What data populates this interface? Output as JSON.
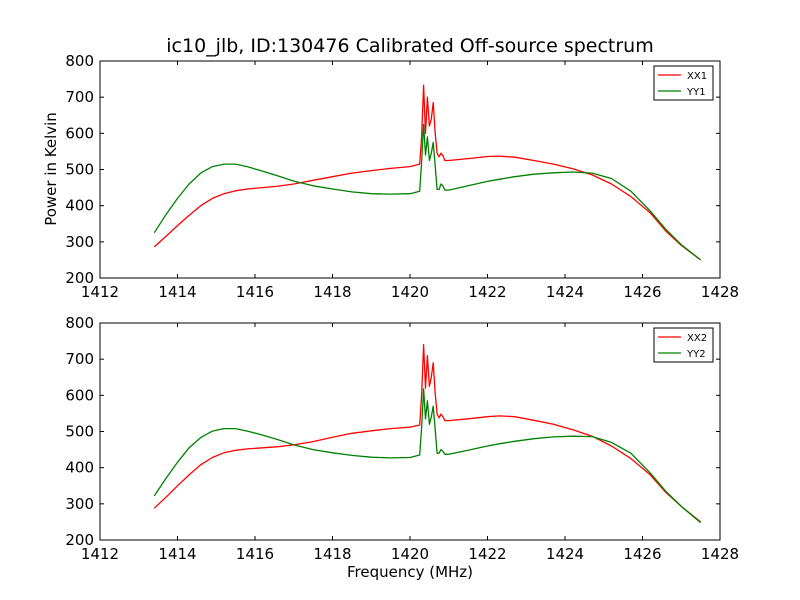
{
  "figure": {
    "title": "ic10_jlb, ID:130476 Calibrated Off-source spectrum",
    "ylabel": "Power in Kelvin",
    "xlabel": "Frequency (MHz)"
  },
  "colors": {
    "xx": "#ff0000",
    "yy": "#008000"
  },
  "chart_data": [
    {
      "type": "line",
      "xlim": [
        1412,
        1428
      ],
      "ylim": [
        200,
        800
      ],
      "xticks": [
        1412,
        1414,
        1416,
        1418,
        1420,
        1422,
        1424,
        1426,
        1428
      ],
      "yticks": [
        200,
        300,
        400,
        500,
        600,
        700,
        800
      ],
      "legend_position": "top-right",
      "grid": false,
      "series": [
        {
          "name": "XX1",
          "color": "#ff0000",
          "x": [
            1413.4,
            1413.7,
            1414.0,
            1414.3,
            1414.6,
            1414.9,
            1415.2,
            1415.5,
            1415.8,
            1416.2,
            1416.6,
            1417.0,
            1417.5,
            1418.0,
            1418.5,
            1419.0,
            1419.5,
            1420.0,
            1420.25,
            1420.3,
            1420.35,
            1420.4,
            1420.45,
            1420.5,
            1420.55,
            1420.6,
            1420.65,
            1420.7,
            1420.75,
            1420.8,
            1420.85,
            1420.9,
            1421.0,
            1421.5,
            1422.0,
            1422.3,
            1422.7,
            1423.2,
            1423.7,
            1424.2,
            1424.7,
            1425.2,
            1425.7,
            1426.2,
            1426.6,
            1427.0,
            1427.5
          ],
          "y": [
            286,
            315,
            345,
            373,
            400,
            420,
            433,
            441,
            446,
            450,
            454,
            460,
            470,
            480,
            490,
            497,
            503,
            508,
            515,
            590,
            733,
            600,
            700,
            620,
            640,
            685,
            600,
            545,
            535,
            545,
            538,
            525,
            525,
            530,
            536,
            537,
            534,
            525,
            515,
            502,
            485,
            460,
            425,
            380,
            330,
            290,
            250
          ]
        },
        {
          "name": "YY1",
          "color": "#008000",
          "x": [
            1413.4,
            1413.7,
            1414.0,
            1414.3,
            1414.6,
            1414.9,
            1415.2,
            1415.5,
            1415.8,
            1416.2,
            1416.6,
            1417.0,
            1417.5,
            1418.0,
            1418.5,
            1419.0,
            1419.5,
            1420.0,
            1420.25,
            1420.3,
            1420.35,
            1420.4,
            1420.45,
            1420.5,
            1420.55,
            1420.6,
            1420.65,
            1420.7,
            1420.75,
            1420.8,
            1420.85,
            1420.9,
            1421.0,
            1421.5,
            1422.0,
            1422.3,
            1422.7,
            1423.2,
            1423.7,
            1424.2,
            1424.7,
            1425.2,
            1425.7,
            1426.2,
            1426.6,
            1427.0,
            1427.5
          ],
          "y": [
            325,
            375,
            420,
            460,
            490,
            508,
            515,
            515,
            508,
            495,
            482,
            468,
            455,
            446,
            438,
            433,
            432,
            433,
            440,
            520,
            625,
            540,
            590,
            525,
            545,
            575,
            510,
            445,
            445,
            460,
            455,
            443,
            443,
            455,
            467,
            473,
            480,
            487,
            491,
            493,
            490,
            475,
            440,
            385,
            335,
            292,
            250
          ]
        }
      ]
    },
    {
      "type": "line",
      "xlim": [
        1412,
        1428
      ],
      "ylim": [
        200,
        800
      ],
      "xticks": [
        1412,
        1414,
        1416,
        1418,
        1420,
        1422,
        1424,
        1426,
        1428
      ],
      "yticks": [
        200,
        300,
        400,
        500,
        600,
        700,
        800
      ],
      "legend_position": "top-right",
      "grid": false,
      "series": [
        {
          "name": "XX2",
          "color": "#ff0000",
          "x": [
            1413.4,
            1413.7,
            1414.0,
            1414.3,
            1414.6,
            1414.9,
            1415.2,
            1415.5,
            1415.8,
            1416.2,
            1416.6,
            1417.0,
            1417.5,
            1418.0,
            1418.5,
            1419.0,
            1419.5,
            1420.0,
            1420.25,
            1420.3,
            1420.35,
            1420.4,
            1420.45,
            1420.5,
            1420.55,
            1420.6,
            1420.65,
            1420.7,
            1420.75,
            1420.8,
            1420.85,
            1420.9,
            1421.0,
            1421.5,
            1422.0,
            1422.3,
            1422.7,
            1423.2,
            1423.7,
            1424.2,
            1424.7,
            1425.2,
            1425.7,
            1426.2,
            1426.6,
            1427.0,
            1427.5
          ],
          "y": [
            288,
            318,
            350,
            380,
            408,
            428,
            441,
            448,
            452,
            455,
            458,
            463,
            472,
            484,
            495,
            502,
            508,
            512,
            518,
            600,
            740,
            620,
            710,
            625,
            650,
            690,
            605,
            548,
            538,
            548,
            541,
            530,
            530,
            535,
            541,
            543,
            541,
            531,
            520,
            505,
            487,
            460,
            425,
            380,
            332,
            293,
            250
          ]
        },
        {
          "name": "YY2",
          "color": "#008000",
          "x": [
            1413.4,
            1413.7,
            1414.0,
            1414.3,
            1414.6,
            1414.9,
            1415.2,
            1415.5,
            1415.8,
            1416.2,
            1416.6,
            1417.0,
            1417.5,
            1418.0,
            1418.5,
            1419.0,
            1419.5,
            1420.0,
            1420.25,
            1420.3,
            1420.35,
            1420.4,
            1420.45,
            1420.5,
            1420.55,
            1420.6,
            1420.65,
            1420.7,
            1420.75,
            1420.8,
            1420.85,
            1420.9,
            1421.0,
            1421.5,
            1422.0,
            1422.3,
            1422.7,
            1423.2,
            1423.7,
            1424.2,
            1424.7,
            1425.2,
            1425.7,
            1426.2,
            1426.6,
            1427.0,
            1427.5
          ],
          "y": [
            322,
            370,
            415,
            455,
            483,
            501,
            508,
            508,
            501,
            490,
            477,
            463,
            450,
            441,
            434,
            429,
            427,
            428,
            435,
            510,
            618,
            535,
            585,
            520,
            540,
            570,
            505,
            440,
            440,
            450,
            445,
            437,
            437,
            448,
            460,
            466,
            473,
            480,
            485,
            487,
            486,
            470,
            440,
            385,
            335,
            293,
            248
          ]
        }
      ]
    }
  ]
}
